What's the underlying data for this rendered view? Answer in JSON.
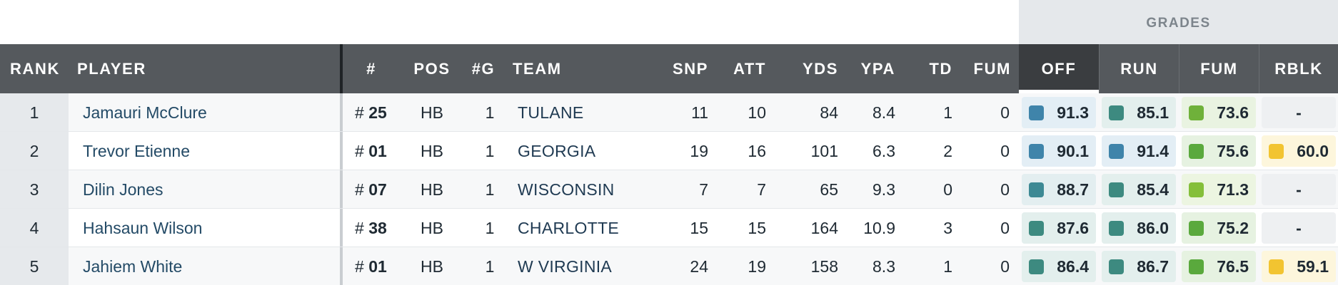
{
  "group_header": {
    "grades_label": "GRADES"
  },
  "columns": {
    "rank": "RANK",
    "player": "PLAYER",
    "jersey": "#",
    "pos": "POS",
    "games": "#G",
    "team": "TEAM",
    "snp": "SNP",
    "att": "ATT",
    "yds": "YDS",
    "ypa": "YPA",
    "td": "TD",
    "fum": "FUM",
    "grade_off": "OFF",
    "grade_run": "RUN",
    "grade_fum": "FUM",
    "grade_rblk": "RBLK"
  },
  "colors": {
    "header_bg": "#55595d",
    "active_col_bg": "#3a3d40",
    "grade_blue": "#3f84aa",
    "grade_teal": "#3d8a80",
    "grade_green": "#5aa93d",
    "grade_lightgreen": "#84bf3a",
    "grade_yellow": "#f2c431"
  },
  "rows": [
    {
      "rank": "1",
      "player": "Jamauri McClure",
      "jersey_prefix": "#",
      "jersey": "25",
      "pos": "HB",
      "games": "1",
      "team": "TULANE",
      "snp": "11",
      "att": "10",
      "yds": "84",
      "ypa": "8.4",
      "td": "1",
      "fum": "0",
      "grades": {
        "off": {
          "value": "91.3",
          "color": "#3f84aa",
          "bg": "#e3eef5"
        },
        "run": {
          "value": "85.1",
          "color": "#3d8a80",
          "bg": "#e3efed"
        },
        "fum": {
          "value": "73.6",
          "color": "#6fb13a",
          "bg": "#e9f3e1"
        },
        "rblk": {
          "value": "-",
          "color": "",
          "bg": "#eef0f2"
        }
      }
    },
    {
      "rank": "2",
      "player": "Trevor Etienne",
      "jersey_prefix": "#",
      "jersey": "01",
      "pos": "HB",
      "games": "1",
      "team": "GEORGIA",
      "snp": "19",
      "att": "16",
      "yds": "101",
      "ypa": "6.3",
      "td": "2",
      "fum": "0",
      "grades": {
        "off": {
          "value": "90.1",
          "color": "#3f84aa",
          "bg": "#e3eef5"
        },
        "run": {
          "value": "91.4",
          "color": "#3f84aa",
          "bg": "#e3eef5"
        },
        "fum": {
          "value": "75.6",
          "color": "#5aa93d",
          "bg": "#e6f2e1"
        },
        "rblk": {
          "value": "60.0",
          "color": "#f2c431",
          "bg": "#fdf6dc"
        }
      }
    },
    {
      "rank": "3",
      "player": "Dilin Jones",
      "jersey_prefix": "#",
      "jersey": "07",
      "pos": "HB",
      "games": "1",
      "team": "WISCONSIN",
      "snp": "7",
      "att": "7",
      "yds": "65",
      "ypa": "9.3",
      "td": "0",
      "fum": "0",
      "grades": {
        "off": {
          "value": "88.7",
          "color": "#3d8994",
          "bg": "#e3eef0"
        },
        "run": {
          "value": "85.4",
          "color": "#3d8a80",
          "bg": "#e3efed"
        },
        "fum": {
          "value": "71.3",
          "color": "#84bf3a",
          "bg": "#ecf5e1"
        },
        "rblk": {
          "value": "-",
          "color": "",
          "bg": "#eef0f2"
        }
      }
    },
    {
      "rank": "4",
      "player": "Hahsaun Wilson",
      "jersey_prefix": "#",
      "jersey": "38",
      "pos": "HB",
      "games": "1",
      "team": "CHARLOTTE",
      "snp": "15",
      "att": "15",
      "yds": "164",
      "ypa": "10.9",
      "td": "3",
      "fum": "0",
      "grades": {
        "off": {
          "value": "87.6",
          "color": "#3d8a80",
          "bg": "#e3efed"
        },
        "run": {
          "value": "86.0",
          "color": "#3d8a80",
          "bg": "#e3efed"
        },
        "fum": {
          "value": "75.2",
          "color": "#5aa93d",
          "bg": "#e6f2e1"
        },
        "rblk": {
          "value": "-",
          "color": "",
          "bg": "#eef0f2"
        }
      }
    },
    {
      "rank": "5",
      "player": "Jahiem White",
      "jersey_prefix": "#",
      "jersey": "01",
      "pos": "HB",
      "games": "1",
      "team": "W VIRGINIA",
      "snp": "24",
      "att": "19",
      "yds": "158",
      "ypa": "8.3",
      "td": "1",
      "fum": "0",
      "grades": {
        "off": {
          "value": "86.4",
          "color": "#3d8a80",
          "bg": "#e3efed"
        },
        "run": {
          "value": "86.7",
          "color": "#3d8a80",
          "bg": "#e3efed"
        },
        "fum": {
          "value": "76.5",
          "color": "#5aa93d",
          "bg": "#e6f2e1"
        },
        "rblk": {
          "value": "59.1",
          "color": "#f2c431",
          "bg": "#fdf6dc"
        }
      }
    }
  ]
}
